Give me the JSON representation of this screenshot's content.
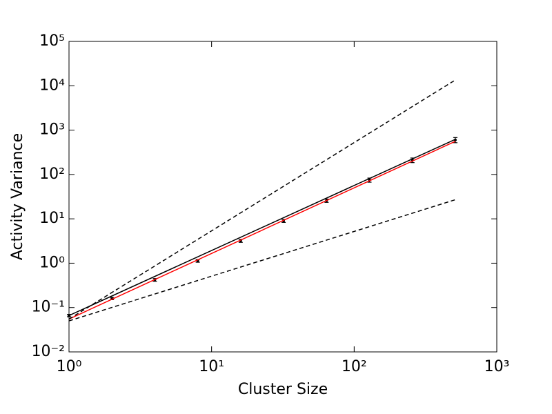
{
  "chart_data": {
    "type": "line",
    "xlabel": "Cluster Size",
    "ylabel": "Activity Variance",
    "xscale": "log",
    "yscale": "log",
    "xlim": [
      1,
      1000
    ],
    "ylim": [
      0.01,
      100000
    ],
    "xticks": [
      {
        "value": 1,
        "label": "10⁰"
      },
      {
        "value": 10,
        "label": "10¹"
      },
      {
        "value": 100,
        "label": "10²"
      },
      {
        "value": 1000,
        "label": "10³"
      }
    ],
    "yticks": [
      {
        "value": 0.01,
        "label": "10⁻²"
      },
      {
        "value": 0.1,
        "label": "10⁻¹"
      },
      {
        "value": 1,
        "label": "10⁰"
      },
      {
        "value": 10,
        "label": "10¹"
      },
      {
        "value": 100,
        "label": "10²"
      },
      {
        "value": 1000,
        "label": "10³"
      },
      {
        "value": 10000,
        "label": "10⁴"
      },
      {
        "value": 100000,
        "label": "10⁵"
      }
    ],
    "x": [
      1,
      2,
      4,
      8,
      16,
      32,
      64,
      128,
      256,
      512
    ],
    "series": [
      {
        "color": "#000000",
        "line": "none",
        "marker": "o",
        "values": [
          0.066,
          0.16,
          0.42,
          1.13,
          3.2,
          9.0,
          25.7,
          75,
          210,
          600
        ],
        "errors": [
          0.004,
          0.01,
          0.03,
          0.08,
          0.25,
          0.7,
          2.2,
          8,
          25,
          80
        ]
      },
      {
        "color": "#000000",
        "line": "solid",
        "x": [
          1,
          512
        ],
        "values": [
          0.066,
          620
        ]
      },
      {
        "color": "#ff0000",
        "line": "solid",
        "x": [
          1,
          512
        ],
        "values": [
          0.055,
          560
        ]
      },
      {
        "color": "#000000",
        "line": "dashed",
        "x": [
          1,
          512
        ],
        "values": [
          0.055,
          13500
        ]
      },
      {
        "color": "#000000",
        "line": "dashed",
        "x": [
          1,
          512
        ],
        "values": [
          0.05,
          27
        ]
      }
    ]
  }
}
